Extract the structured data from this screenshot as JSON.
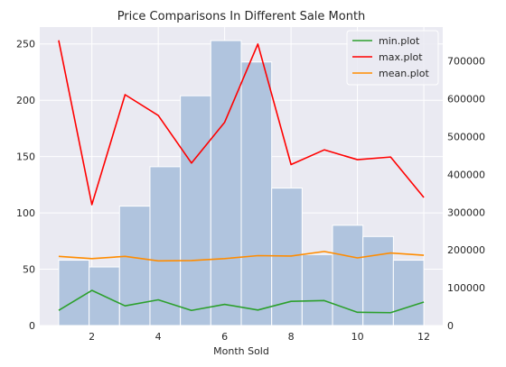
{
  "chart_data": {
    "type": "bar",
    "title": "Price Comparisons In Different Sale Month",
    "xlabel": "Month Sold",
    "ylabel": "",
    "xlim": [
      0.43,
      12.57
    ],
    "ylim_left": [
      0,
      265
    ],
    "ylim_right": [
      0,
      790000
    ],
    "x_ticks": [
      2,
      4,
      6,
      8,
      10,
      12
    ],
    "y_ticks_left": [
      0,
      50,
      100,
      150,
      200,
      250
    ],
    "y_ticks_right": [
      0,
      100000,
      200000,
      300000,
      400000,
      500000,
      600000,
      700000
    ],
    "grid": true,
    "legend_position": "top-right",
    "histogram": {
      "bin_edges": [
        1.0,
        1.917,
        2.833,
        3.75,
        4.667,
        5.583,
        6.5,
        7.417,
        8.333,
        9.25,
        10.167,
        11.083,
        12.0
      ],
      "counts": [
        58,
        52,
        106,
        141,
        204,
        253,
        234,
        122,
        63,
        89,
        79,
        58
      ],
      "color": "#b0c4de"
    },
    "series": [
      {
        "name": "min.plot",
        "color": "#2ca02c",
        "x": [
          1,
          2,
          3,
          4,
          5,
          6,
          7,
          8,
          9,
          10,
          11,
          12
        ],
        "values": [
          40000,
          93000,
          52000,
          68000,
          40000,
          56000,
          41000,
          64000,
          66000,
          35000,
          34000,
          62000
        ]
      },
      {
        "name": "max.plot",
        "color": "#ff0000",
        "x": [
          1,
          2,
          3,
          4,
          5,
          6,
          7,
          8,
          9,
          10,
          11,
          12
        ],
        "values": [
          755000,
          320000,
          611000,
          556000,
          430000,
          538000,
          745000,
          426000,
          465000,
          439000,
          446000,
          339000
        ]
      },
      {
        "name": "mean.plot",
        "color": "#ff8c00",
        "x": [
          1,
          2,
          3,
          4,
          5,
          6,
          7,
          8,
          9,
          10,
          11,
          12
        ],
        "values": [
          183000,
          177000,
          183000,
          171000,
          172000,
          177000,
          185000,
          184000,
          196000,
          179000,
          192000,
          186000
        ]
      }
    ]
  }
}
